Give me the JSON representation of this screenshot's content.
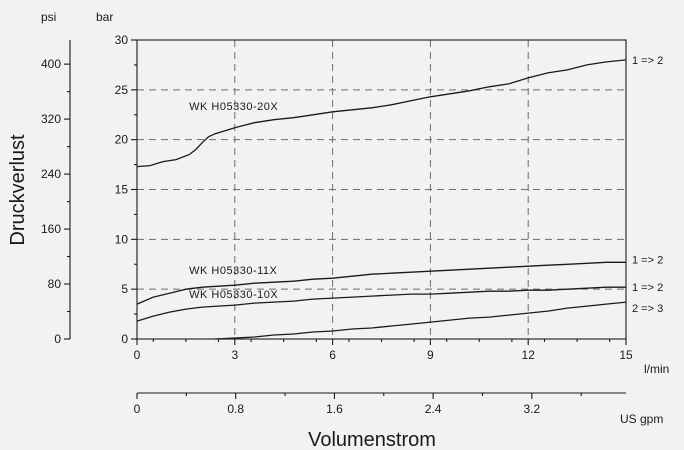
{
  "chart_data": {
    "type": "line",
    "title": "",
    "xlabel": "Volumenstrom",
    "ylabel": "Druckverlust",
    "x_unit": "l/min",
    "x2_unit": "US gpm",
    "y_unit": "bar",
    "y2_unit": "psi",
    "xlim": [
      0,
      15
    ],
    "ylim": [
      0,
      30
    ],
    "x_ticks": [
      "0",
      "3",
      "6",
      "9",
      "12",
      "15"
    ],
    "x_tick_values": [
      0,
      3,
      6,
      9,
      12,
      15
    ],
    "x2_ticks": [
      "0",
      "0.8",
      "1.6",
      "2.4",
      "3.2"
    ],
    "x2_tick_values": [
      0,
      0.8,
      1.6,
      2.4,
      3.2
    ],
    "y_ticks": [
      "0",
      "5",
      "10",
      "15",
      "20",
      "25",
      "30"
    ],
    "y_tick_values": [
      0,
      5,
      10,
      15,
      20,
      25,
      30
    ],
    "y2_ticks": [
      "0",
      "80",
      "160",
      "240",
      "320",
      "400"
    ],
    "y2_tick_values": [
      0,
      80,
      160,
      240,
      320,
      400
    ],
    "grid": true,
    "series": [
      {
        "name": "WK H05330-20X",
        "flow_label": "1 => 2",
        "x": [
          0,
          0.4,
          0.8,
          1.2,
          1.6,
          1.8,
          2.0,
          2.2,
          2.4,
          3.0,
          3.6,
          4.2,
          4.8,
          5.4,
          6.0,
          6.6,
          7.2,
          7.8,
          8.4,
          9.0,
          9.6,
          10.2,
          10.8,
          11.4,
          12.0,
          12.6,
          13.2,
          13.8,
          14.4,
          15.0
        ],
        "y": [
          17.3,
          17.4,
          17.8,
          18.0,
          18.5,
          19.0,
          19.7,
          20.3,
          20.6,
          21.2,
          21.7,
          22.0,
          22.2,
          22.5,
          22.8,
          23.0,
          23.2,
          23.5,
          23.9,
          24.3,
          24.6,
          24.9,
          25.3,
          25.6,
          26.2,
          26.7,
          27.0,
          27.5,
          27.8,
          28.0
        ]
      },
      {
        "name": "WK H05330-11X",
        "flow_label": "1 => 2",
        "x": [
          0,
          0.5,
          1.0,
          1.5,
          2.0,
          2.5,
          3.0,
          3.6,
          4.2,
          4.8,
          5.4,
          6.0,
          6.6,
          7.2,
          7.8,
          8.4,
          9.0,
          9.6,
          10.2,
          10.8,
          11.4,
          12.0,
          12.6,
          13.2,
          13.8,
          14.4,
          15.0
        ],
        "y": [
          3.5,
          4.2,
          4.6,
          5.0,
          5.2,
          5.3,
          5.4,
          5.6,
          5.7,
          5.8,
          6.0,
          6.1,
          6.3,
          6.5,
          6.6,
          6.7,
          6.8,
          6.9,
          7.0,
          7.1,
          7.2,
          7.3,
          7.4,
          7.5,
          7.6,
          7.7,
          7.7
        ]
      },
      {
        "name": "WK H05330-10X",
        "flow_label": "1 => 2",
        "x": [
          0,
          0.5,
          1.0,
          1.5,
          2.0,
          2.5,
          3.0,
          3.6,
          4.2,
          4.8,
          5.4,
          6.0,
          6.6,
          7.2,
          7.8,
          8.4,
          9.0,
          9.6,
          10.2,
          10.8,
          11.4,
          12.0,
          12.6,
          13.2,
          13.8,
          14.4,
          15.0
        ],
        "y": [
          1.8,
          2.3,
          2.7,
          3.0,
          3.2,
          3.3,
          3.4,
          3.6,
          3.7,
          3.8,
          4.0,
          4.1,
          4.2,
          4.3,
          4.4,
          4.5,
          4.5,
          4.6,
          4.7,
          4.8,
          4.8,
          4.9,
          4.9,
          5.0,
          5.1,
          5.2,
          5.2
        ]
      },
      {
        "name": "",
        "flow_label": "2 => 3",
        "x": [
          2.4,
          3.0,
          3.6,
          4.2,
          4.8,
          5.4,
          6.0,
          6.6,
          7.2,
          7.8,
          8.4,
          9.0,
          9.6,
          10.2,
          10.8,
          11.4,
          12.0,
          12.6,
          13.2,
          13.8,
          14.4,
          15.0
        ],
        "y": [
          0.0,
          0.1,
          0.2,
          0.4,
          0.5,
          0.7,
          0.8,
          1.0,
          1.1,
          1.3,
          1.5,
          1.7,
          1.9,
          2.1,
          2.2,
          2.4,
          2.6,
          2.8,
          3.1,
          3.3,
          3.5,
          3.7
        ]
      }
    ]
  }
}
